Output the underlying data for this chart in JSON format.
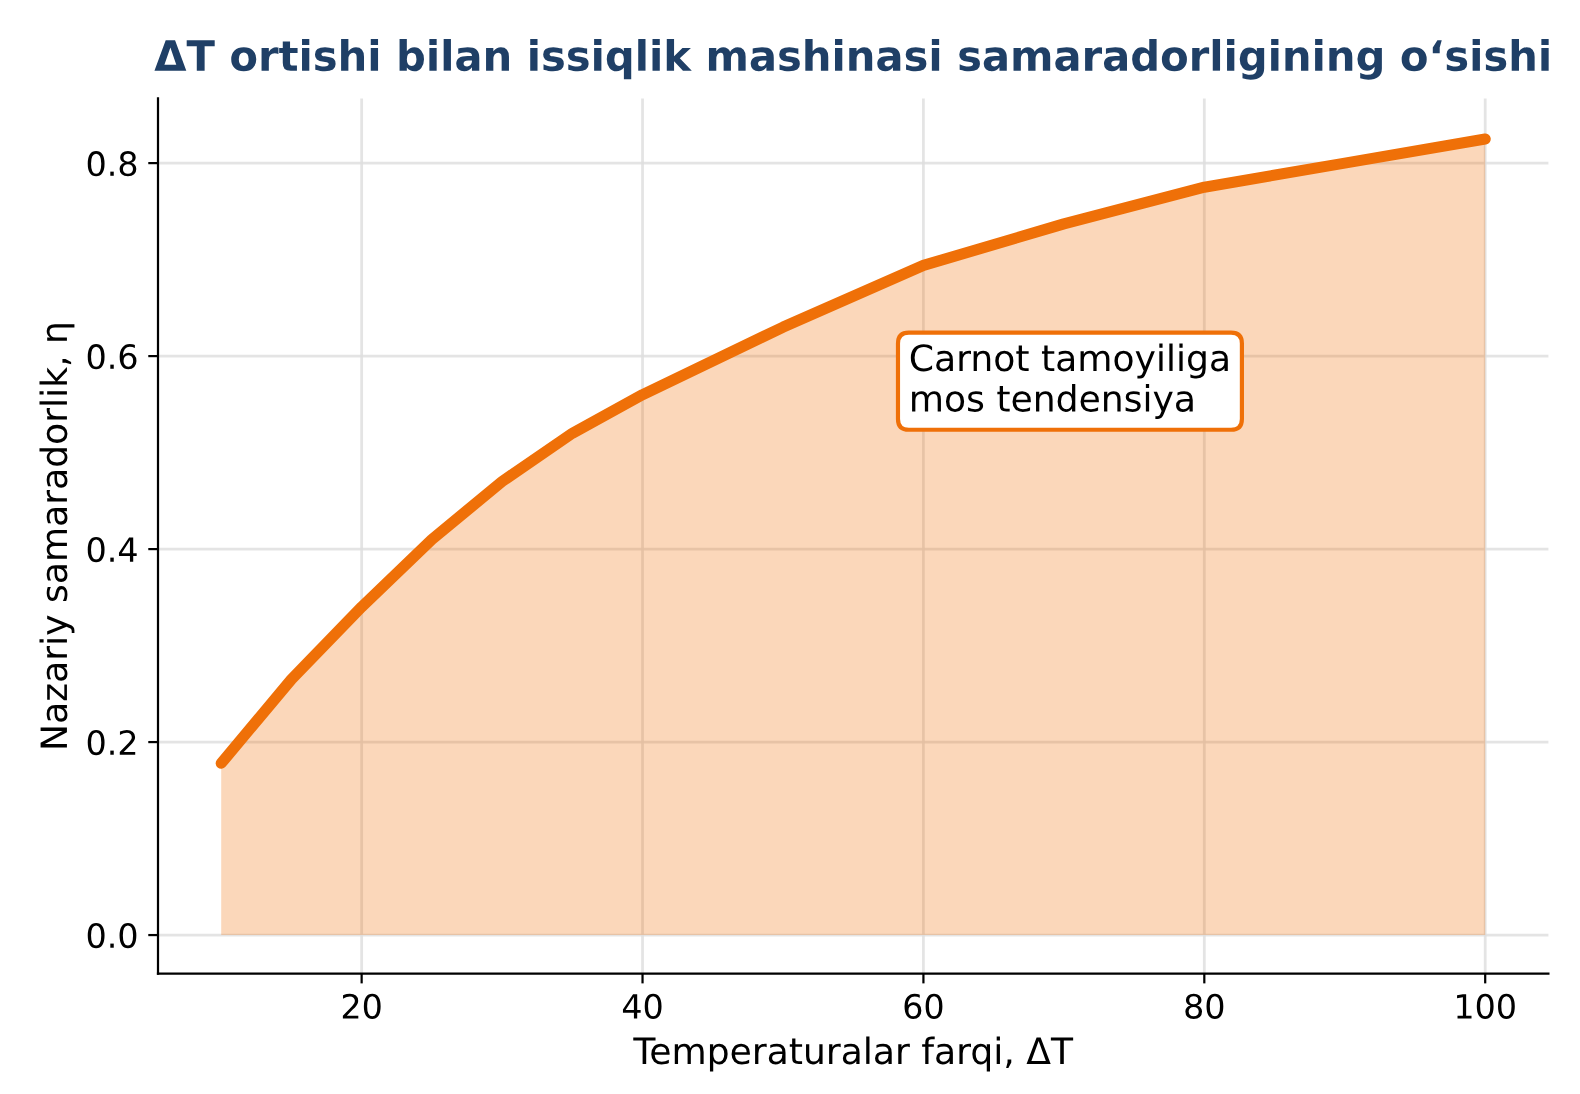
{
  "chart_data": {
    "type": "area",
    "title": "ΔT ortishi bilan issiqlik mashinasi samaradorligining o‘sishi",
    "xlabel": "Temperaturalar farqi, ΔT",
    "ylabel": "Nazariy samaradorlik, η",
    "x": [
      10,
      15,
      20,
      25,
      30,
      35,
      40,
      50,
      60,
      70,
      80,
      90,
      100
    ],
    "series": [
      {
        "color": "#ef7008",
        "values": [
          0.178,
          0.265,
          0.34,
          0.41,
          0.47,
          0.52,
          0.56,
          0.63,
          0.694,
          0.737,
          0.775,
          0.8,
          0.825
        ]
      }
    ],
    "annotations": [
      "Carnot tamoyiliga\nmos tendensiya"
    ],
    "xlim": [
      5.5,
      104.5
    ],
    "ylim": [
      -0.04,
      0.867
    ],
    "xticks": [
      20,
      40,
      60,
      80,
      100
    ],
    "yticks": [
      {
        "value": 0,
        "label": "0.0"
      },
      0.2,
      0.4,
      0.6,
      0.8
    ],
    "grid": true
  }
}
